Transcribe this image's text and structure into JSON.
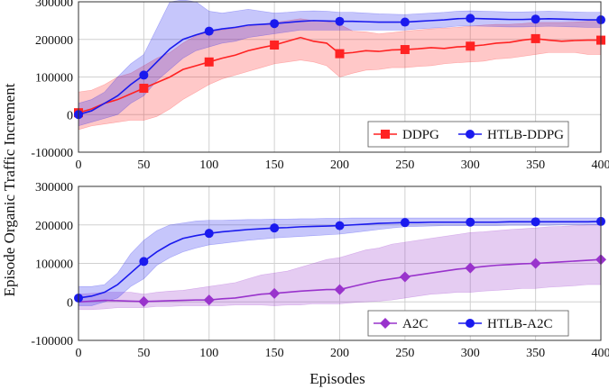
{
  "ylabel": "Episode Organic Traffic Increment",
  "xlabel": "Episodes",
  "chart_data": [
    {
      "type": "line",
      "xlim": [
        0,
        400
      ],
      "ylim": [
        -100000,
        300000
      ],
      "x_ticks": [
        "0",
        "50",
        "100",
        "150",
        "200",
        "250",
        "300",
        "350",
        "400"
      ],
      "y_ticks": [
        "-100000",
        "0",
        "100000",
        "200000",
        "300000"
      ],
      "grid": true,
      "legend_position": "bottom-right",
      "x": [
        0,
        10,
        20,
        30,
        40,
        50,
        60,
        70,
        80,
        90,
        100,
        110,
        120,
        130,
        140,
        150,
        160,
        170,
        180,
        190,
        200,
        210,
        220,
        230,
        240,
        250,
        260,
        270,
        280,
        290,
        300,
        310,
        320,
        330,
        340,
        350,
        360,
        370,
        380,
        390,
        400
      ],
      "series": [
        {
          "name": "DDPG",
          "color": "#ff2222",
          "marker": "square",
          "values": [
            5000,
            15000,
            30000,
            40000,
            55000,
            70000,
            85000,
            100000,
            120000,
            130000,
            140000,
            150000,
            158000,
            170000,
            178000,
            185000,
            195000,
            205000,
            195000,
            190000,
            162000,
            165000,
            170000,
            168000,
            172000,
            173000,
            175000,
            178000,
            176000,
            180000,
            182000,
            185000,
            190000,
            192000,
            198000,
            202000,
            198000,
            195000,
            197000,
            198000,
            198000
          ],
          "lower": [
            -40000,
            -30000,
            -25000,
            -20000,
            -15000,
            -15000,
            -5000,
            15000,
            40000,
            60000,
            80000,
            95000,
            105000,
            115000,
            125000,
            135000,
            140000,
            145000,
            140000,
            130000,
            100000,
            110000,
            118000,
            120000,
            125000,
            125000,
            128000,
            130000,
            135000,
            138000,
            140000,
            142000,
            148000,
            150000,
            155000,
            160000,
            165000,
            165000,
            165000,
            160000,
            160000
          ],
          "upper": [
            60000,
            65000,
            80000,
            100000,
            110000,
            130000,
            150000,
            165000,
            190000,
            210000,
            220000,
            225000,
            230000,
            235000,
            240000,
            245000,
            250000,
            255000,
            250000,
            248000,
            240000,
            222000,
            220000,
            215000,
            218000,
            222000,
            225000,
            228000,
            230000,
            232000,
            235000,
            238000,
            240000,
            240000,
            242000,
            245000,
            245000,
            245000,
            246000,
            248000,
            248000
          ],
          "marker_x": [
            0,
            50,
            100,
            150,
            200,
            250,
            300,
            350,
            400
          ]
        },
        {
          "name": "HTLB-DDPG",
          "color": "#1a1aee",
          "marker": "circle",
          "values": [
            0,
            10000,
            30000,
            50000,
            80000,
            105000,
            140000,
            175000,
            200000,
            212000,
            222000,
            228000,
            232000,
            238000,
            240000,
            242000,
            245000,
            248000,
            250000,
            249000,
            248000,
            248000,
            247000,
            246000,
            246000,
            246000,
            248000,
            250000,
            252000,
            255000,
            256000,
            255000,
            254000,
            253000,
            253000,
            254000,
            255000,
            254000,
            253000,
            252000,
            252000
          ],
          "lower": [
            -30000,
            -20000,
            -10000,
            0,
            30000,
            50000,
            90000,
            120000,
            150000,
            170000,
            180000,
            190000,
            195000,
            205000,
            210000,
            215000,
            220000,
            225000,
            225000,
            225000,
            225000,
            225000,
            225000,
            225000,
            225000,
            225000,
            228000,
            230000,
            232000,
            235000,
            236000,
            235000,
            234000,
            233000,
            233000,
            234000,
            235000,
            234000,
            233000,
            232000,
            232000
          ],
          "upper": [
            30000,
            40000,
            60000,
            100000,
            135000,
            160000,
            230000,
            300000,
            305000,
            300000,
            275000,
            270000,
            275000,
            280000,
            275000,
            270000,
            272000,
            275000,
            276000,
            275000,
            272000,
            272000,
            270000,
            268000,
            267000,
            266000,
            268000,
            270000,
            272000,
            275000,
            276000,
            275000,
            274000,
            273000,
            273000,
            274000,
            275000,
            274000,
            273000,
            272000,
            272000
          ],
          "marker_x": [
            0,
            50,
            100,
            150,
            200,
            250,
            300,
            350,
            400
          ]
        }
      ]
    },
    {
      "type": "line",
      "xlim": [
        0,
        400
      ],
      "ylim": [
        -100000,
        300000
      ],
      "x_ticks": [
        "0",
        "50",
        "100",
        "150",
        "200",
        "250",
        "300",
        "350",
        "400"
      ],
      "y_ticks": [
        "-100000",
        "0",
        "100000",
        "200000",
        "300000"
      ],
      "grid": true,
      "legend_position": "bottom-right",
      "x": [
        0,
        10,
        20,
        30,
        40,
        50,
        60,
        70,
        80,
        90,
        100,
        110,
        120,
        130,
        140,
        150,
        160,
        170,
        180,
        190,
        200,
        210,
        220,
        230,
        240,
        250,
        260,
        270,
        280,
        290,
        300,
        310,
        320,
        330,
        340,
        350,
        360,
        370,
        380,
        390,
        400
      ],
      "series": [
        {
          "name": "A2C",
          "color": "#9933cc",
          "marker": "diamond",
          "values": [
            0,
            2000,
            4000,
            3000,
            2000,
            1000,
            2000,
            3000,
            4000,
            5000,
            5000,
            8000,
            10000,
            15000,
            20000,
            22000,
            25000,
            28000,
            30000,
            32000,
            32000,
            40000,
            48000,
            55000,
            60000,
            65000,
            70000,
            75000,
            80000,
            85000,
            88000,
            92000,
            95000,
            97000,
            99000,
            100000,
            102000,
            104000,
            106000,
            108000,
            110000
          ],
          "lower": [
            -20000,
            -20000,
            -18000,
            -15000,
            -15000,
            -15000,
            -12000,
            -12000,
            -10000,
            -10000,
            -10000,
            -10000,
            -8000,
            -8000,
            -8000,
            -10000,
            -8000,
            -8000,
            -5000,
            -5000,
            -5000,
            -2000,
            0,
            2000,
            5000,
            10000,
            15000,
            20000,
            22000,
            25000,
            25000,
            28000,
            30000,
            32000,
            35000,
            35000,
            38000,
            40000,
            42000,
            45000,
            45000
          ],
          "upper": [
            20000,
            22000,
            25000,
            25000,
            25000,
            20000,
            25000,
            28000,
            30000,
            35000,
            40000,
            45000,
            50000,
            60000,
            70000,
            75000,
            80000,
            90000,
            100000,
            110000,
            115000,
            125000,
            135000,
            140000,
            150000,
            155000,
            160000,
            165000,
            170000,
            175000,
            180000,
            182000,
            185000,
            188000,
            190000,
            192000,
            195000,
            196000,
            198000,
            200000,
            200000
          ],
          "marker_x": [
            50,
            100,
            150,
            200,
            250,
            300,
            350,
            400
          ]
        },
        {
          "name": "HTLB-A2C",
          "color": "#1a1aee",
          "marker": "circle",
          "values": [
            10000,
            15000,
            25000,
            45000,
            75000,
            105000,
            130000,
            150000,
            165000,
            172000,
            178000,
            182000,
            185000,
            188000,
            190000,
            192000,
            193000,
            195000,
            196000,
            197000,
            198000,
            200000,
            202000,
            204000,
            205000,
            206000,
            206000,
            207000,
            207000,
            207000,
            207000,
            207000,
            207000,
            208000,
            208000,
            208000,
            208000,
            208000,
            208000,
            208000,
            209000
          ],
          "lower": [
            -10000,
            -10000,
            0,
            10000,
            40000,
            60000,
            95000,
            115000,
            130000,
            140000,
            148000,
            152000,
            156000,
            160000,
            163000,
            166000,
            168000,
            170000,
            172000,
            174000,
            176000,
            180000,
            184000,
            188000,
            192000,
            195000,
            196000,
            197000,
            198000,
            198000,
            198000,
            198000,
            198000,
            199000,
            199000,
            199000,
            199000,
            200000,
            200000,
            200000,
            200000
          ],
          "upper": [
            40000,
            40000,
            45000,
            75000,
            125000,
            160000,
            185000,
            200000,
            205000,
            210000,
            212000,
            212000,
            213000,
            214000,
            214000,
            215000,
            215000,
            216000,
            216000,
            217000,
            217000,
            218000,
            218000,
            218000,
            218000,
            218000,
            218000,
            218000,
            218000,
            218000,
            218000,
            218000,
            218000,
            218000,
            218000,
            218000,
            218000,
            218000,
            218000,
            218000,
            218000
          ],
          "marker_x": [
            0,
            50,
            100,
            150,
            200,
            250,
            300,
            350,
            400
          ]
        }
      ]
    }
  ]
}
